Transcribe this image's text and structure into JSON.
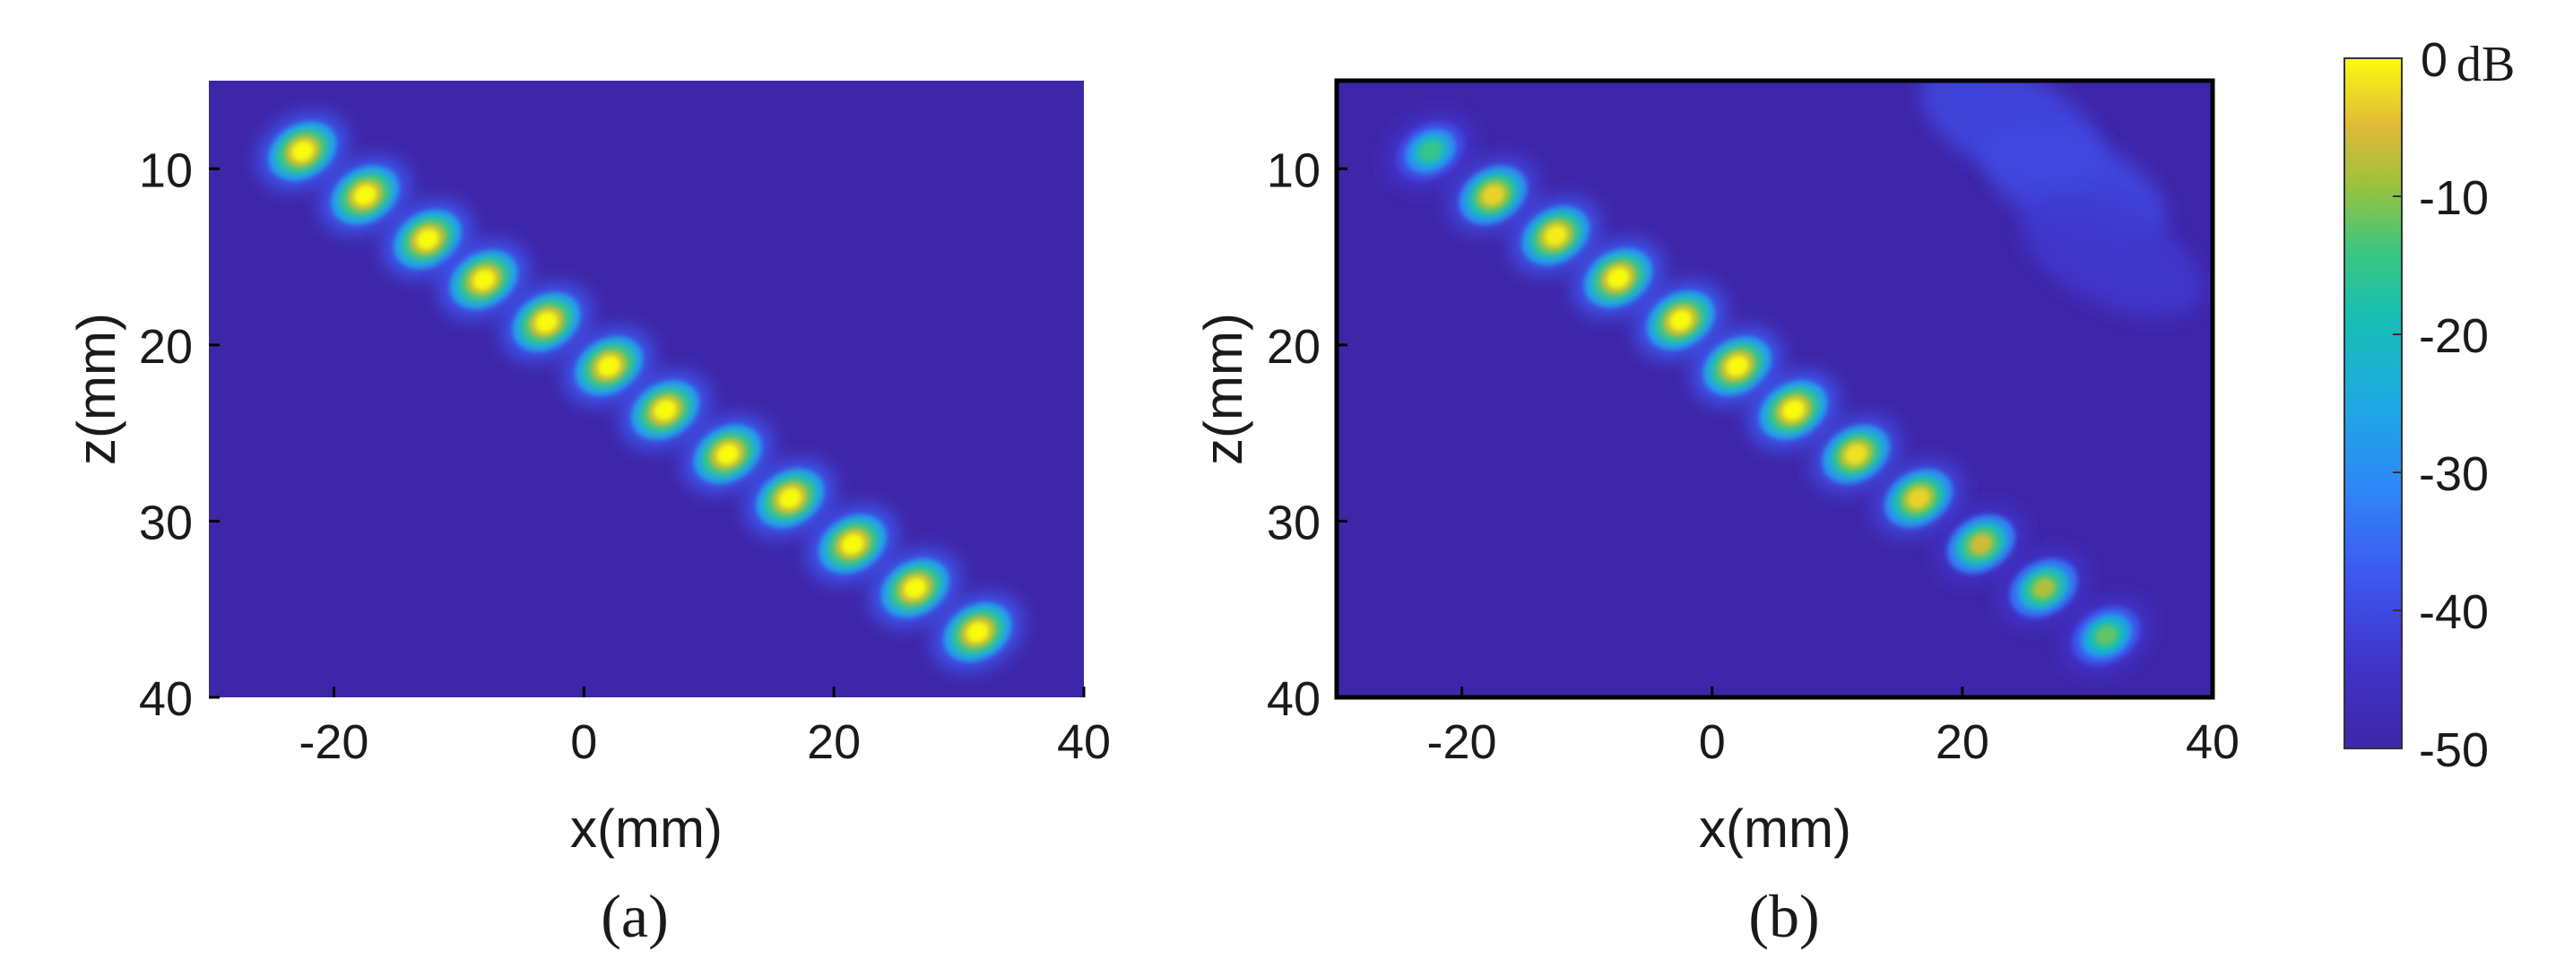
{
  "chart_data": [
    {
      "type": "heatmap",
      "caption": "(a)",
      "xlabel": "x(mm)",
      "ylabel": "z(mm)",
      "xlim": [
        -30,
        40
      ],
      "ylim": [
        40,
        5
      ],
      "xticks": [
        -20,
        0,
        20,
        40
      ],
      "yticks": [
        10,
        20,
        30,
        40
      ],
      "y_axis_direction": "downward",
      "colormap": "parula",
      "colorbar_range_db": [
        -50,
        0
      ],
      "background_db": -50,
      "focal_spots": [
        {
          "x": -22.5,
          "z": 9.0,
          "peak_db": 0
        },
        {
          "x": -17.5,
          "z": 11.5,
          "peak_db": 0
        },
        {
          "x": -12.5,
          "z": 14.0,
          "peak_db": 0
        },
        {
          "x": -8.0,
          "z": 16.3,
          "peak_db": 0
        },
        {
          "x": -3.0,
          "z": 18.7,
          "peak_db": 0
        },
        {
          "x": 2.0,
          "z": 21.2,
          "peak_db": 0
        },
        {
          "x": 6.5,
          "z": 23.7,
          "peak_db": 0
        },
        {
          "x": 11.5,
          "z": 26.2,
          "peak_db": 0
        },
        {
          "x": 16.5,
          "z": 28.7,
          "peak_db": 0
        },
        {
          "x": 21.5,
          "z": 31.3,
          "peak_db": 0
        },
        {
          "x": 26.5,
          "z": 33.8,
          "peak_db": 0
        },
        {
          "x": 31.5,
          "z": 36.3,
          "peak_db": 0
        }
      ],
      "artifacts": []
    },
    {
      "type": "heatmap",
      "caption": "(b)",
      "xlabel": "x(mm)",
      "ylabel": "z(mm)",
      "xlim": [
        -30,
        40
      ],
      "ylim": [
        40,
        5
      ],
      "xticks": [
        -20,
        0,
        20,
        40
      ],
      "yticks": [
        10,
        20,
        30,
        40
      ],
      "y_axis_direction": "downward",
      "colormap": "parula",
      "colorbar_range_db": [
        -50,
        0
      ],
      "background_db": -50,
      "focal_spots": [
        {
          "x": -22.5,
          "z": 9.0,
          "peak_db": -15
        },
        {
          "x": -17.5,
          "z": 11.5,
          "peak_db": -3
        },
        {
          "x": -12.5,
          "z": 13.8,
          "peak_db": -1
        },
        {
          "x": -7.5,
          "z": 16.2,
          "peak_db": 0
        },
        {
          "x": -2.5,
          "z": 18.6,
          "peak_db": 0
        },
        {
          "x": 2.0,
          "z": 21.2,
          "peak_db": 0
        },
        {
          "x": 6.5,
          "z": 23.7,
          "peak_db": 0
        },
        {
          "x": 11.5,
          "z": 26.2,
          "peak_db": -2
        },
        {
          "x": 16.5,
          "z": 28.7,
          "peak_db": -3
        },
        {
          "x": 21.5,
          "z": 31.3,
          "peak_db": -6
        },
        {
          "x": 26.5,
          "z": 33.8,
          "peak_db": -8
        },
        {
          "x": 31.5,
          "z": 36.5,
          "peak_db": -12
        }
      ],
      "artifacts": [
        {
          "x": 24.0,
          "z": 7.5,
          "peak_db": -40
        },
        {
          "x": 29.0,
          "z": 11.0,
          "peak_db": -40
        },
        {
          "x": 32.0,
          "z": 15.0,
          "peak_db": -43
        }
      ]
    }
  ],
  "colorbar": {
    "unit": "dB",
    "ticks": [
      "0",
      "-10",
      "-20",
      "-30",
      "-40",
      "-50"
    ],
    "values": [
      0,
      -10,
      -20,
      -30,
      -40,
      -50
    ]
  }
}
